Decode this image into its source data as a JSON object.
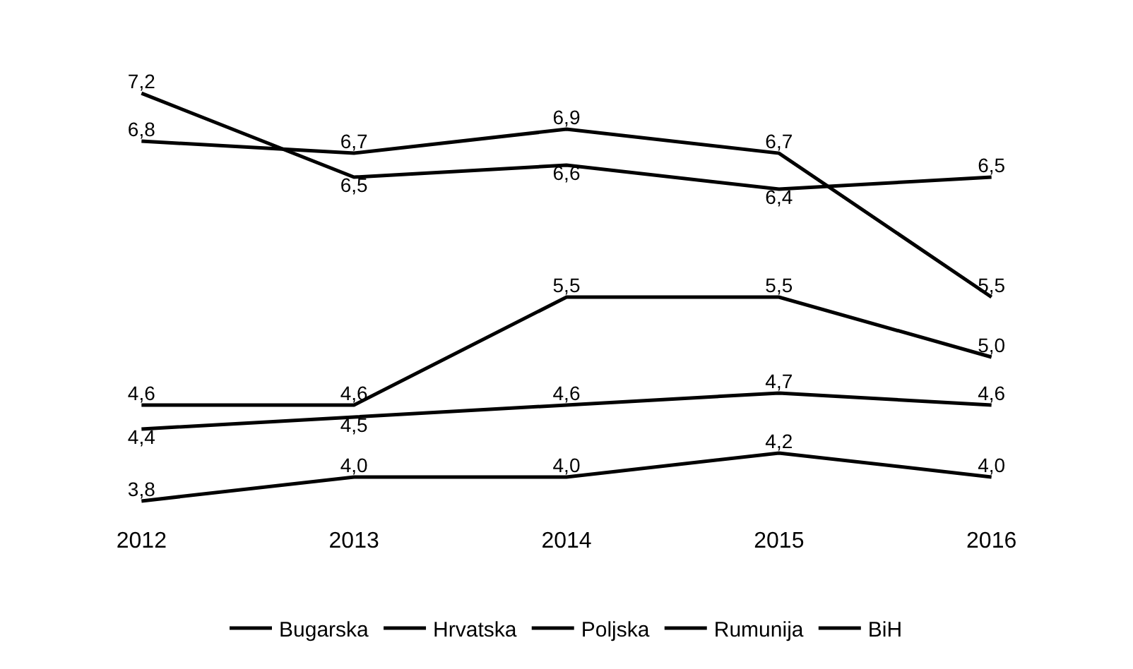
{
  "chart_data": {
    "type": "line",
    "categories": [
      "2012",
      "2013",
      "2014",
      "2015",
      "2016"
    ],
    "series": [
      {
        "name": "Bugarska",
        "color": "#000000",
        "values": [
          7.2,
          6.5,
          6.6,
          6.4,
          6.5
        ],
        "value_labels": [
          "7,2",
          "6,5",
          "6,6",
          "6,4",
          "6,5"
        ]
      },
      {
        "name": "Hrvatska",
        "color": "#000000",
        "values": [
          6.8,
          6.7,
          6.9,
          6.7,
          5.5
        ],
        "value_labels": [
          "6,8",
          "6,7",
          "6,9",
          "6,7",
          "5,5"
        ]
      },
      {
        "name": "Poljska",
        "color": "#000000",
        "values": [
          4.6,
          4.6,
          5.5,
          5.5,
          5.0
        ],
        "value_labels": [
          "4,6",
          "4,6",
          "5,5",
          "5,5",
          "5,0"
        ]
      },
      {
        "name": "Rumunija",
        "color": "#000000",
        "values": [
          4.4,
          4.5,
          4.6,
          4.7,
          4.6
        ],
        "value_labels": [
          "4,4",
          "4,5",
          "4,6",
          "4,7",
          "4,6"
        ]
      },
      {
        "name": "BiH",
        "color": "#000000",
        "values": [
          3.8,
          4.0,
          4.0,
          4.2,
          4.0
        ],
        "value_labels": [
          "3,8",
          "4,0",
          "4,0",
          "4,2",
          "4,0"
        ]
      }
    ],
    "tick_labels": "x",
    "legend": "bottom",
    "marker": "none",
    "line_style": "solid"
  }
}
